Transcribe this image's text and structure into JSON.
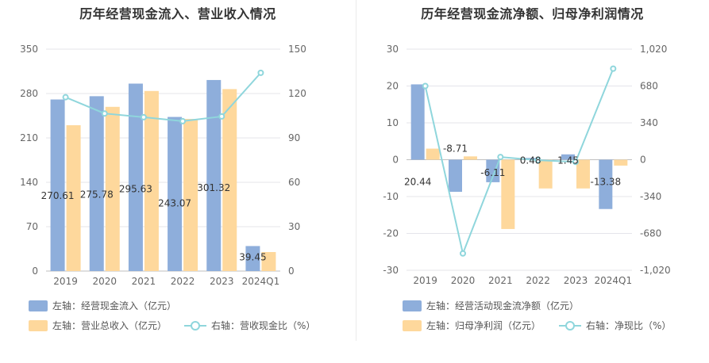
{
  "chart_data": [
    {
      "type": "bar",
      "title": "历年经营现金流入、营业收入情况",
      "categories": [
        "2019",
        "2020",
        "2021",
        "2022",
        "2023",
        "2024Q1"
      ],
      "left_axis": {
        "ylim": [
          0,
          350
        ],
        "ticks": [
          "0",
          "70",
          "140",
          "210",
          "280",
          "350"
        ]
      },
      "right_axis": {
        "ylim": [
          0,
          150
        ],
        "ticks": [
          "0",
          "30",
          "60",
          "90",
          "120",
          "150"
        ]
      },
      "series": [
        {
          "name": "左轴：经营现金流入（亿元）",
          "axis": "left",
          "kind": "bar",
          "color": "#8eaedb",
          "values": [
            270.61,
            275.78,
            295.63,
            243.07,
            301.32,
            39.45
          ],
          "labels": [
            "270.61",
            "275.78",
            "295.63",
            "243.07",
            "301.32",
            "39.45"
          ]
        },
        {
          "name": "左轴：营业总收入（亿元）",
          "axis": "left",
          "kind": "bar",
          "color": "#fed89c",
          "values": [
            230,
            259,
            284,
            240,
            287,
            30
          ]
        },
        {
          "name": "右轴：营收现金比（%）",
          "axis": "right",
          "kind": "line",
          "color": "#8fd6dc",
          "values": [
            117.5,
            106.5,
            104,
            101.3,
            104.5,
            134
          ]
        }
      ],
      "grid": true,
      "legend_position": "bottom-left"
    },
    {
      "type": "bar",
      "title": "历年经营现金流净额、归母净利润情况",
      "categories": [
        "2019",
        "2020",
        "2021",
        "2022",
        "2023",
        "2024Q1"
      ],
      "left_axis": {
        "ylim": [
          -30,
          30
        ],
        "ticks": [
          "-30",
          "-20",
          "-10",
          "0",
          "10",
          "20",
          "30"
        ]
      },
      "right_axis": {
        "ylim": [
          -1020,
          1020
        ],
        "ticks": [
          "-1,020",
          "-680",
          "-340",
          "0",
          "340",
          "680",
          "1,020"
        ]
      },
      "series": [
        {
          "name": "左轴：经营活动现金流净额（亿元）",
          "axis": "left",
          "kind": "bar",
          "color": "#8eaedb",
          "values": [
            20.44,
            -8.71,
            -6.11,
            0.48,
            1.45,
            -13.38
          ],
          "labels": [
            "20.44",
            "-8.71",
            "-6.11",
            "0.48",
            "1.45",
            "-13.38"
          ]
        },
        {
          "name": "左轴：归母净利润（亿元）",
          "axis": "left",
          "kind": "bar",
          "color": "#fed89c",
          "values": [
            3.0,
            0.9,
            -18.8,
            -7.8,
            -7.8,
            -1.6
          ]
        },
        {
          "name": "右轴：净现比（%）",
          "axis": "right",
          "kind": "line",
          "color": "#8fd6dc",
          "values": [
            680,
            -865,
            25,
            -5,
            -20,
            840
          ]
        }
      ],
      "grid": true,
      "legend_position": "bottom-left"
    }
  ]
}
